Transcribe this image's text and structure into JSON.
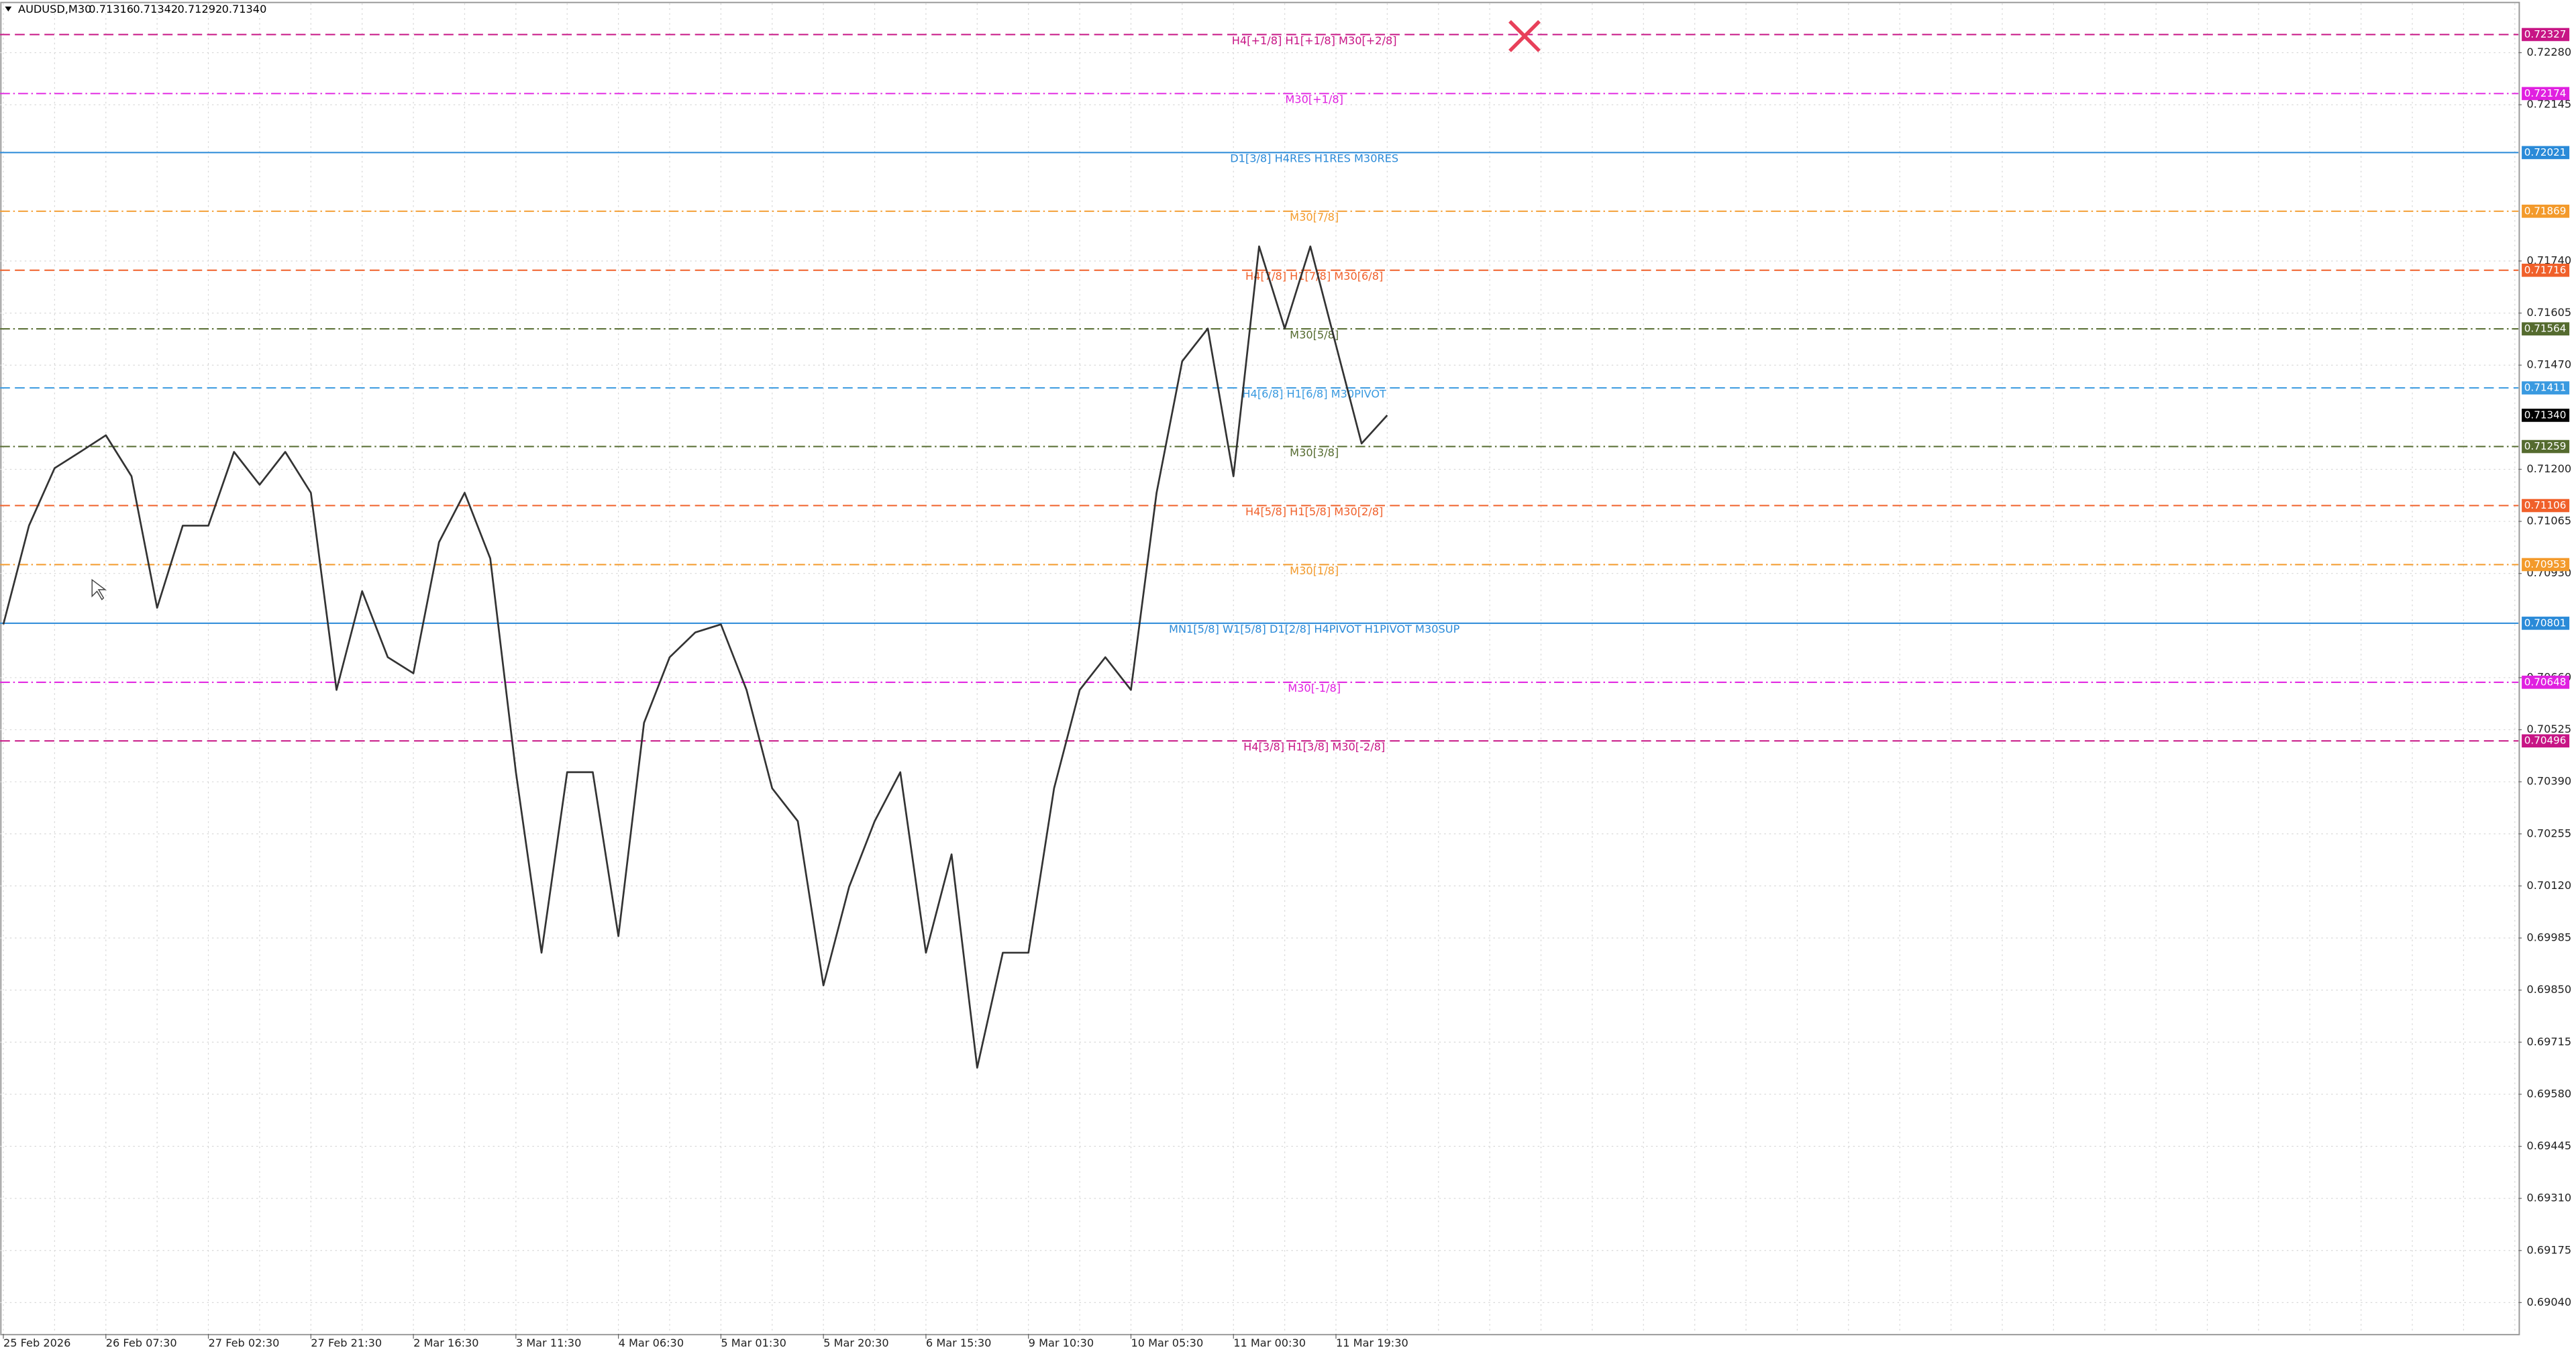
{
  "header": {
    "symbol": "AUDUSD,M30",
    "open": "0.71316",
    "high": "0.71342",
    "low": "0.71292",
    "close": "0.71340"
  },
  "price_axis": {
    "range": [
      0.68959,
      0.72408
    ],
    "ticks": [
      {
        "value": 0.7228,
        "label": "0.72280"
      },
      {
        "value": 0.72145,
        "label": "0.72145"
      },
      {
        "value": 0.7174,
        "label": "0.71740"
      },
      {
        "value": 0.71605,
        "label": "0.71605"
      },
      {
        "value": 0.7147,
        "label": "0.71470"
      },
      {
        "value": 0.712,
        "label": "0.71200"
      },
      {
        "value": 0.71065,
        "label": "0.71065"
      },
      {
        "value": 0.7093,
        "label": "0.70930"
      },
      {
        "value": 0.7066,
        "label": "0.70660"
      },
      {
        "value": 0.70525,
        "label": "0.70525"
      },
      {
        "value": 0.7039,
        "label": "0.70390"
      },
      {
        "value": 0.70255,
        "label": "0.70255"
      },
      {
        "value": 0.7012,
        "label": "0.70120"
      },
      {
        "value": 0.69985,
        "label": "0.69985"
      },
      {
        "value": 0.6985,
        "label": "0.69850"
      },
      {
        "value": 0.69715,
        "label": "0.69715"
      },
      {
        "value": 0.6958,
        "label": "0.69580"
      },
      {
        "value": 0.69445,
        "label": "0.69445"
      },
      {
        "value": 0.6931,
        "label": "0.69310"
      },
      {
        "value": 0.69175,
        "label": "0.69175"
      },
      {
        "value": 0.6904,
        "label": "0.69040"
      }
    ],
    "current_price": {
      "value": 0.7134,
      "label": "0.71340"
    }
  },
  "time_axis": {
    "labels": [
      "25 Feb 2026",
      "26 Feb 07:30",
      "27 Feb 02:30",
      "27 Feb 21:30",
      "2 Mar 16:30",
      "3 Mar 11:30",
      "4 Mar 06:30",
      "5 Mar 01:30",
      "5 Mar 20:30",
      "6 Mar 15:30",
      "9 Mar 10:30",
      "10 Mar 05:30",
      "11 Mar 00:30",
      "11 Mar 19:30"
    ]
  },
  "levels": [
    {
      "text": "H4[+1/8] H1[+1/8] M30[+2/8]",
      "value": 0.72327,
      "label": "0.72327",
      "color": "#c71585",
      "style": "dashed"
    },
    {
      "text": "M30[+1/8]",
      "value": 0.72174,
      "label": "0.72174",
      "color": "#e020e0",
      "style": "dashdot"
    },
    {
      "text": "D1[3/8] H4RES H1RES M30RES",
      "value": 0.72021,
      "label": "0.72021",
      "color": "#2a8ad8",
      "style": "solid"
    },
    {
      "text": "M30[7/8]",
      "value": 0.71869,
      "label": "0.71869",
      "color": "#f39a2b",
      "style": "dashdot"
    },
    {
      "text": "H4[7/8] H1[7/8] M30[6/8]",
      "value": 0.71716,
      "label": "0.71716",
      "color": "#f0602a",
      "style": "dashed"
    },
    {
      "text": "M30[5/8]",
      "value": 0.71564,
      "label": "0.71564",
      "color": "#556b2f",
      "style": "dashdot"
    },
    {
      "text": "H4[6/8] H1[6/8] M30PIVOT",
      "value": 0.71411,
      "label": "0.71411",
      "color": "#3a9ae0",
      "style": "dashed"
    },
    {
      "text": "M30[3/8]",
      "value": 0.71259,
      "label": "0.71259",
      "color": "#556b2f",
      "style": "dashdot"
    },
    {
      "text": "H4[5/8] H1[5/8] M30[2/8]",
      "value": 0.71106,
      "label": "0.71106",
      "color": "#f0602a",
      "style": "dashed"
    },
    {
      "text": "M30[1/8]",
      "value": 0.70953,
      "label": "0.70953",
      "color": "#f39a2b",
      "style": "dashdot"
    },
    {
      "text": "MN1[5/8] W1[5/8] D1[2/8] H4PIVOT H1PIVOT M30SUP",
      "value": 0.70801,
      "label": "0.70801",
      "color": "#2a8ad8",
      "style": "solid"
    },
    {
      "text": "M30[-1/8]",
      "value": 0.70648,
      "label": "0.70648",
      "color": "#e020e0",
      "style": "dashdot"
    },
    {
      "text": "H4[3/8] H1[3/8] M30[-2/8]",
      "value": 0.70496,
      "label": "0.70496",
      "color": "#c71585",
      "style": "dashed"
    }
  ],
  "price_series": {
    "color": "#333333",
    "values": [
      0.70798,
      0.71054,
      0.71203,
      0.71245,
      0.71288,
      0.71182,
      0.70841,
      0.71054,
      0.71054,
      0.71245,
      0.7116,
      0.71245,
      0.71139,
      0.70628,
      0.70884,
      0.70713,
      0.70671,
      0.71011,
      0.71139,
      0.70969,
      0.70415,
      0.69947,
      0.70415,
      0.70415,
      0.6999,
      0.70543,
      0.70713,
      0.70777,
      0.70798,
      0.70628,
      0.70373,
      0.70288,
      0.69862,
      0.70117,
      0.70288,
      0.70415,
      0.69947,
      0.70202,
      0.69649,
      0.69947,
      0.69947,
      0.70373,
      0.70628,
      0.70713,
      0.70628,
      0.71139,
      0.7148,
      0.71565,
      0.71182,
      0.71778,
      0.71565,
      0.71778,
      0.71522,
      0.71267,
      0.7134
    ]
  }
}
